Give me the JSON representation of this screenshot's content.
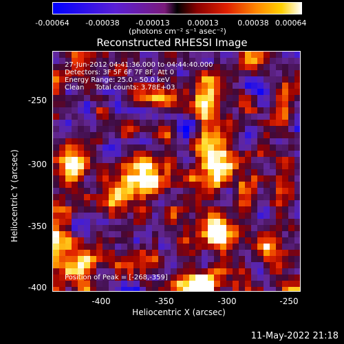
{
  "colorbar": {
    "ticks": [
      "-0.00064",
      "-0.00038",
      "-0.00013",
      "0.00013",
      "0.00038",
      "0.00064"
    ],
    "units": "(photons cm⁻² s⁻¹ asec⁻²)"
  },
  "title": "Reconstructed RHESSI Image",
  "annotations": {
    "time": "27-Jun-2012 04:41:36.000 to 04:44:40.000",
    "detectors": "Detectors: 3F 5F 6F 7F 8F, Att 0",
    "energy": "Energy Range: 25.0 - 50.0 keV",
    "clean": "Clean     Total counts: 3.78E+03",
    "peak": "Position of Peak = [-268,-359]"
  },
  "axes": {
    "xlabel": "Heliocentric X (arcsec)",
    "ylabel": "Heliocentric Y (arcsec)",
    "xticks": [
      "-400",
      "-350",
      "-300",
      "-250"
    ],
    "yticks": [
      "-250",
      "-300",
      "-350",
      "-400"
    ]
  },
  "footer_date": "11-May-2022 21:18"
}
